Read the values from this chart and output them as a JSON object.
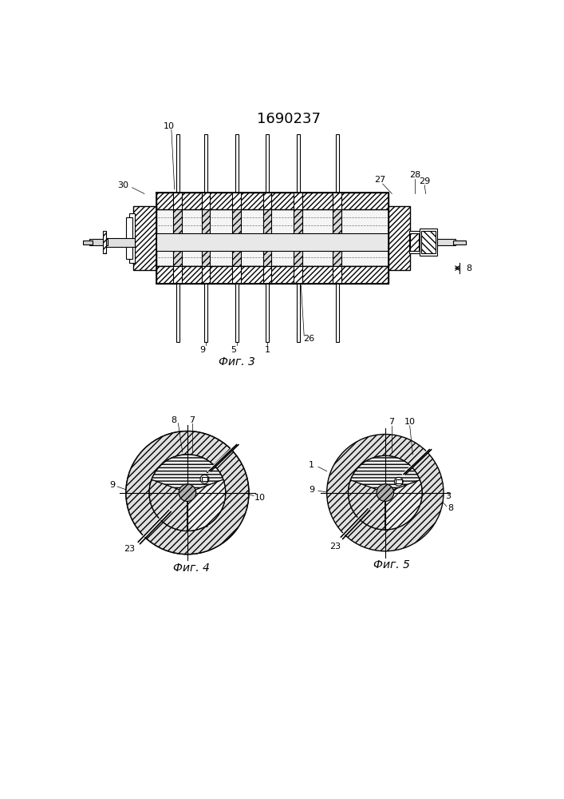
{
  "title": "1690237",
  "bg_color": "#ffffff",
  "line_color": "#000000",
  "fig3_caption": "Фиг. 3",
  "fig4_caption": "Фиг. 4",
  "fig5_caption": "Фиг. 5",
  "caption_fontsize": 10,
  "title_fontsize": 13
}
